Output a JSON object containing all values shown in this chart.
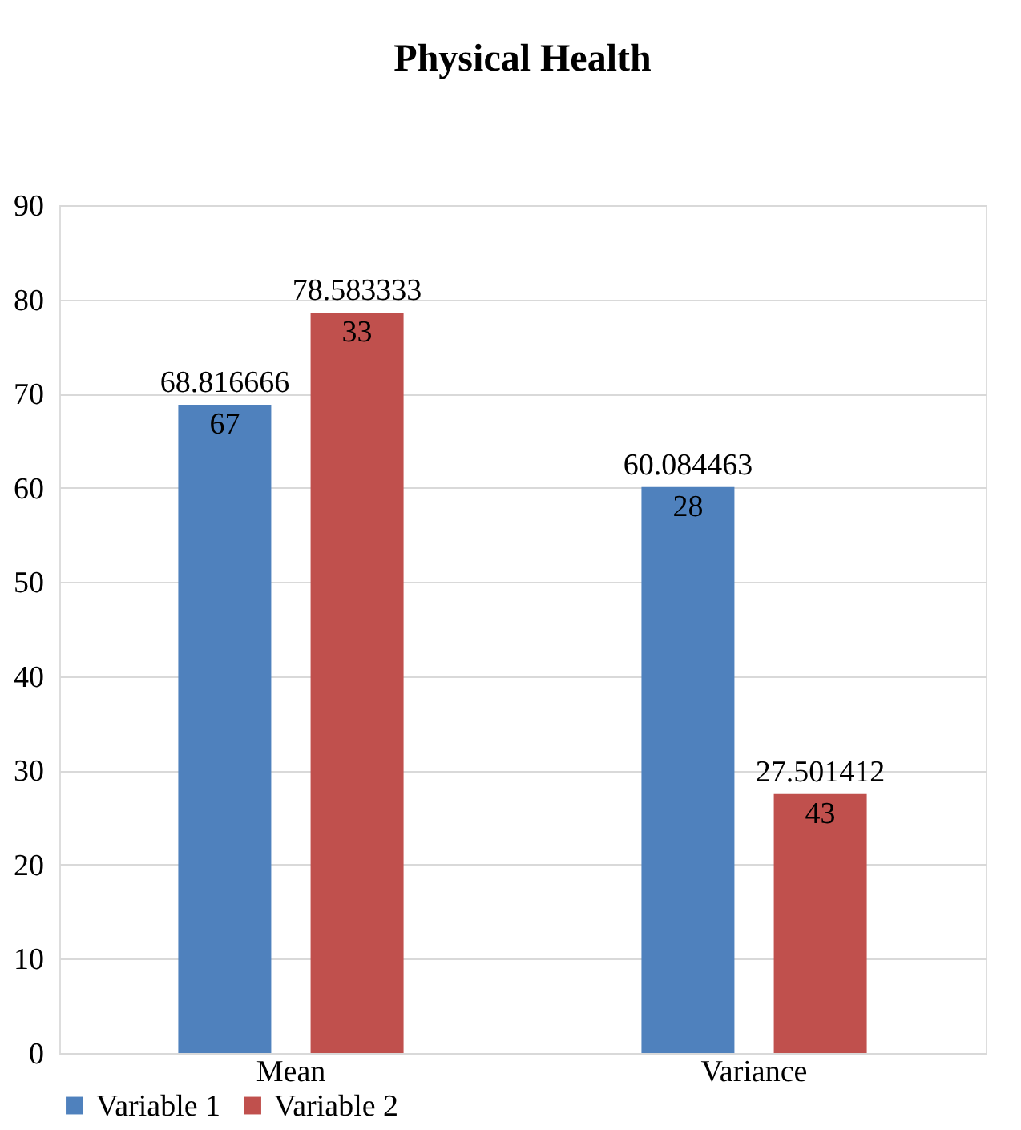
{
  "chart_data": {
    "type": "bar",
    "title": "Physical Health",
    "categories": [
      "Mean",
      "Variance"
    ],
    "series": [
      {
        "name": "Variable 1",
        "color": "#4f81bd",
        "values": [
          68.81666667,
          60.08446328
        ]
      },
      {
        "name": "Variable 2",
        "color": "#c0504d",
        "values": [
          78.58333333,
          27.50141243
        ]
      }
    ],
    "ylim": [
      0,
      90
    ],
    "yticks": [
      0,
      10,
      20,
      30,
      40,
      50,
      60,
      70,
      80,
      90
    ],
    "grid": "y",
    "legend": "bottom",
    "data_labels": true
  }
}
